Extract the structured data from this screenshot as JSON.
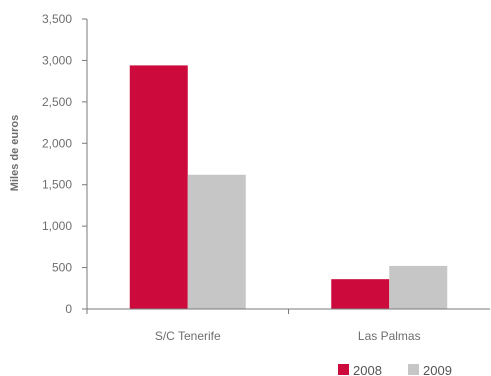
{
  "chart_data": {
    "type": "bar",
    "title": "",
    "xlabel": "",
    "ylabel": "Miles de euros",
    "ylim": [
      0,
      3500
    ],
    "yticks": [
      0,
      500,
      1000,
      1500,
      2000,
      2500,
      3000,
      3500
    ],
    "ytick_labels": [
      "0",
      "500",
      "1,000",
      "1,500",
      "2,000",
      "2,500",
      "3,000",
      "3,500"
    ],
    "categories": [
      "S/C Tenerife",
      "Las Palmas"
    ],
    "series": [
      {
        "name": "2008",
        "values": [
          2940,
          360
        ],
        "color": "#cc0a3c"
      },
      {
        "name": "2009",
        "values": [
          1620,
          520
        ],
        "color": "#c6c6c6"
      }
    ],
    "grid": false,
    "legend_position": "bottom-right"
  }
}
